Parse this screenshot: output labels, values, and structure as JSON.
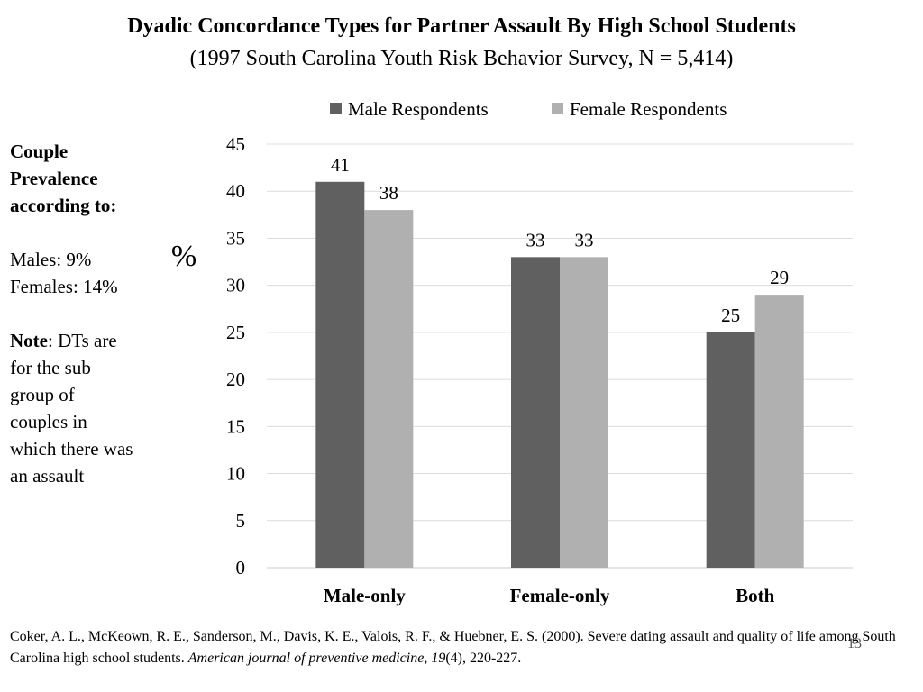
{
  "header": {
    "title": "Dyadic Concordance Types for Partner Assault By High School Students",
    "subtitle": "(1997 South Carolina Youth Risk Behavior Survey, N = 5,414)"
  },
  "sidebar": {
    "heading_line1": "Couple",
    "heading_line2": "Prevalence",
    "heading_line3": "according to:",
    "males": "Males:  9%",
    "females": "Females: 14%",
    "note_label": "Note",
    "note_lines": [
      ":  DTs are",
      "for the sub",
      "group of",
      "couples in",
      "which there was",
      "an assault"
    ]
  },
  "citation": {
    "part1": "Coker, A. L., McKeown, R. E., Sanderson, M., Davis, K. E., Valois, R. F., & Huebner, E. S. (2000). Severe dating assault and quality of life among South Carolina high school students. ",
    "journal": "American journal of preventive medicine",
    "sep": ", ",
    "volume": "19",
    "rest": "(4), 220-227."
  },
  "slide_number": "13",
  "chart_data": {
    "type": "bar",
    "categories": [
      "Male-only",
      "Female-only",
      "Both"
    ],
    "series": [
      {
        "name": "Male Respondents",
        "values": [
          41,
          33,
          25
        ],
        "color": "#606060"
      },
      {
        "name": "Female Respondents",
        "values": [
          38,
          33,
          29
        ],
        "color": "#b0b0b0"
      }
    ],
    "ylabel": "%",
    "ylim": [
      0,
      45
    ],
    "yticks": [
      0,
      5,
      10,
      15,
      20,
      25,
      30,
      35,
      40,
      45
    ],
    "grid": true,
    "legend_position": "top",
    "data_labels": true
  }
}
